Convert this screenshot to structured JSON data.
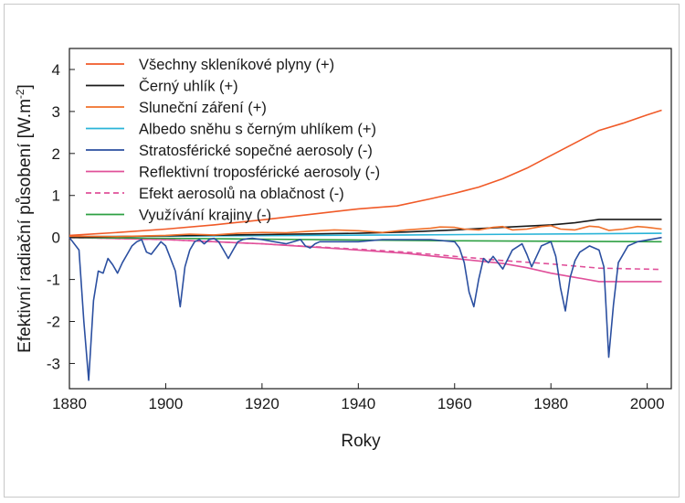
{
  "chart_data": {
    "type": "line",
    "title": "",
    "xlabel": "Roky",
    "ylabel_main": "Efektivní radiační působení [W.m",
    "ylabel_sup": "-2",
    "ylabel_end": "]",
    "xlim": [
      1880,
      2005
    ],
    "ylim": [
      -3.6,
      4.5
    ],
    "xticks": [
      1880,
      1900,
      1920,
      1940,
      1960,
      1980,
      2000
    ],
    "yticks": [
      4,
      3,
      2,
      1,
      0,
      -1,
      -2,
      -3
    ],
    "grid": false,
    "legend_position": "top-left",
    "series": [
      {
        "name": "Všechny skleníkové plyny (+)",
        "color": "#f05a28",
        "dashed": false,
        "x": [
          1880,
          1890,
          1900,
          1910,
          1920,
          1930,
          1940,
          1948,
          1955,
          1960,
          1965,
          1970,
          1975,
          1980,
          1985,
          1990,
          1995,
          2000,
          2003
        ],
        "y": [
          0.05,
          0.12,
          0.2,
          0.3,
          0.42,
          0.55,
          0.68,
          0.75,
          0.92,
          1.05,
          1.2,
          1.4,
          1.65,
          1.95,
          2.25,
          2.55,
          2.72,
          2.92,
          3.03
        ]
      },
      {
        "name": "Černý uhlík (+)",
        "color": "#1a1a1a",
        "dashed": false,
        "x": [
          1880,
          1900,
          1920,
          1940,
          1950,
          1960,
          1970,
          1980,
          1985,
          1990,
          2003
        ],
        "y": [
          0.0,
          0.04,
          0.07,
          0.1,
          0.13,
          0.18,
          0.24,
          0.3,
          0.35,
          0.43,
          0.43
        ]
      },
      {
        "name": "Sluneční záření (+)",
        "color": "#f0702a",
        "dashed": false,
        "x": [
          1880,
          1890,
          1900,
          1905,
          1910,
          1915,
          1920,
          1925,
          1930,
          1935,
          1940,
          1945,
          1950,
          1955,
          1957,
          1960,
          1962,
          1965,
          1968,
          1970,
          1972,
          1975,
          1978,
          1980,
          1982,
          1985,
          1988,
          1990,
          1992,
          1995,
          1998,
          2000,
          2003
        ],
        "y": [
          0.03,
          0.02,
          0.05,
          0.08,
          0.06,
          0.1,
          0.12,
          0.11,
          0.15,
          0.18,
          0.16,
          0.12,
          0.18,
          0.22,
          0.25,
          0.24,
          0.2,
          0.18,
          0.24,
          0.26,
          0.18,
          0.2,
          0.26,
          0.28,
          0.2,
          0.18,
          0.27,
          0.25,
          0.17,
          0.2,
          0.26,
          0.24,
          0.2
        ]
      },
      {
        "name": "Albedo sněhu s černým uhlíkem (+)",
        "color": "#2ab4d8",
        "dashed": false,
        "x": [
          1880,
          1950,
          2003
        ],
        "y": [
          0.02,
          0.06,
          0.1
        ]
      },
      {
        "name": "Stratosférické sopečné aerosoly (-)",
        "color": "#2b4fa0",
        "dashed": false,
        "x": [
          1880,
          1882,
          1883,
          1884,
          1885,
          1886,
          1887,
          1888,
          1889,
          1890,
          1891,
          1892,
          1893,
          1894,
          1895,
          1896,
          1897,
          1898,
          1899,
          1900,
          1901,
          1902,
          1903,
          1904,
          1905,
          1906,
          1907,
          1908,
          1909,
          1910,
          1911,
          1912,
          1913,
          1914,
          1915,
          1916,
          1917,
          1918,
          1920,
          1925,
          1928,
          1929,
          1930,
          1931,
          1932,
          1935,
          1940,
          1945,
          1950,
          1955,
          1960,
          1961,
          1962,
          1963,
          1964,
          1965,
          1966,
          1967,
          1968,
          1969,
          1970,
          1972,
          1974,
          1975,
          1976,
          1978,
          1980,
          1981,
          1982,
          1983,
          1984,
          1985,
          1986,
          1988,
          1990,
          1991,
          1992,
          1993,
          1994,
          1996,
          1998,
          2003
        ],
        "y": [
          0.0,
          -0.3,
          -2.0,
          -3.4,
          -1.5,
          -0.8,
          -0.85,
          -0.5,
          -0.65,
          -0.85,
          -0.6,
          -0.4,
          -0.2,
          -0.1,
          -0.05,
          -0.35,
          -0.4,
          -0.25,
          -0.1,
          -0.2,
          -0.5,
          -0.8,
          -1.65,
          -0.7,
          -0.3,
          -0.1,
          -0.05,
          -0.15,
          -0.05,
          -0.02,
          -0.1,
          -0.3,
          -0.5,
          -0.3,
          -0.1,
          -0.05,
          -0.03,
          -0.02,
          -0.05,
          -0.15,
          -0.05,
          -0.2,
          -0.25,
          -0.15,
          -0.1,
          -0.1,
          -0.1,
          -0.05,
          -0.05,
          -0.05,
          -0.1,
          -0.25,
          -0.6,
          -1.3,
          -1.65,
          -1.0,
          -0.5,
          -0.6,
          -0.45,
          -0.6,
          -0.75,
          -0.3,
          -0.15,
          -0.4,
          -0.7,
          -0.2,
          -0.1,
          -0.45,
          -1.2,
          -1.75,
          -0.95,
          -0.55,
          -0.35,
          -0.2,
          -0.3,
          -0.7,
          -2.85,
          -1.6,
          -0.6,
          -0.2,
          -0.1,
          0.0
        ]
      },
      {
        "name": "Reflektivní troposférické aerosoly (-)",
        "color": "#e0509a",
        "dashed": false,
        "x": [
          1880,
          1900,
          1920,
          1940,
          1950,
          1960,
          1970,
          1975,
          1980,
          1985,
          1990,
          2003
        ],
        "y": [
          0.0,
          -0.05,
          -0.15,
          -0.3,
          -0.38,
          -0.5,
          -0.62,
          -0.72,
          -0.85,
          -0.95,
          -1.05,
          -1.05
        ]
      },
      {
        "name": "Efekt aerosolů na oblačnost (-)",
        "color": "#e0509a",
        "dashed": true,
        "x": [
          1880,
          1900,
          1920,
          1940,
          1950,
          1960,
          1970,
          1980,
          1990,
          2003
        ],
        "y": [
          0.0,
          -0.05,
          -0.15,
          -0.28,
          -0.35,
          -0.45,
          -0.55,
          -0.63,
          -0.73,
          -0.76
        ]
      },
      {
        "name": "Využívání krajiny (-)",
        "color": "#2ea043",
        "dashed": false,
        "x": [
          1880,
          1920,
          1960,
          2003
        ],
        "y": [
          0.0,
          -0.04,
          -0.08,
          -0.1
        ]
      }
    ]
  }
}
